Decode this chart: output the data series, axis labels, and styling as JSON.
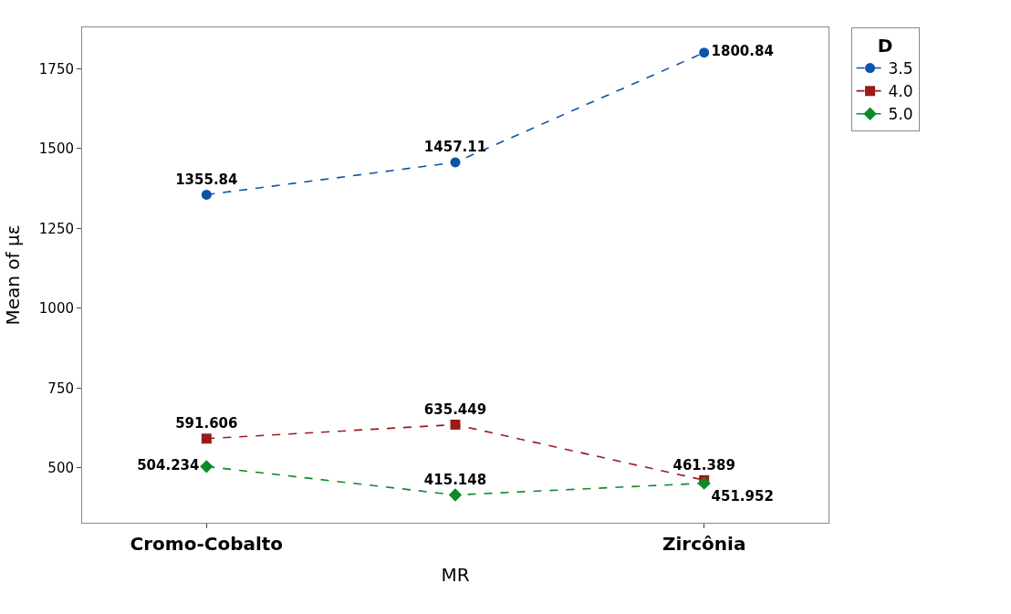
{
  "chart_data": {
    "type": "line",
    "xlabel": "MR",
    "ylabel": "Mean of με",
    "legend_title": "D",
    "categories": [
      "Cromo-Cobalto",
      null,
      "Zircônia"
    ],
    "series": [
      {
        "name": "3.5",
        "color": "#0b55a8",
        "marker": "circle",
        "values": [
          1355.84,
          1457.11,
          1800.84
        ]
      },
      {
        "name": "4.0",
        "color": "#9b1b1b",
        "marker": "square",
        "values": [
          591.606,
          635.449,
          461.389
        ]
      },
      {
        "name": "5.0",
        "color": "#0c8a2a",
        "marker": "diamond",
        "values": [
          504.234,
          415.148,
          451.952
        ]
      }
    ],
    "ylim": [
      328,
      1880
    ],
    "yticks": [
      500,
      750,
      1000,
      1250,
      1500,
      1750
    ],
    "line_style": "dashed",
    "legend": "top right",
    "data_labels": true
  }
}
